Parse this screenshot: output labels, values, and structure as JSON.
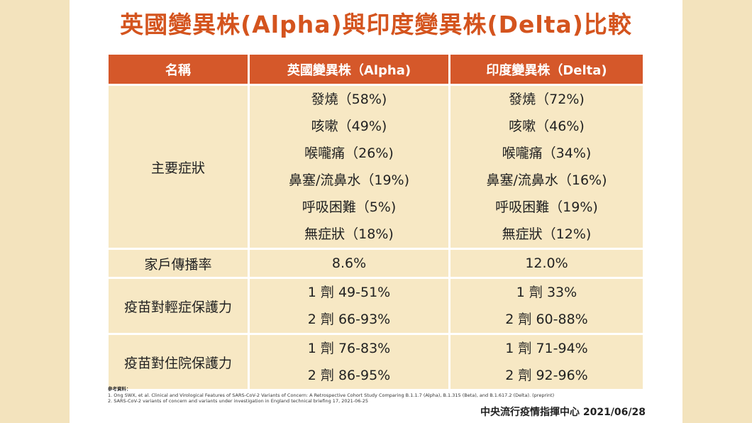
{
  "title": "英國變異株(Alpha)與印度變異株(Delta)比較",
  "table": {
    "headers": [
      "名稱",
      "英國變異株（Alpha)",
      "印度變異株（Delta)"
    ],
    "rows": [
      {
        "label": "主要症狀",
        "alpha": [
          "發燒（58%)",
          "咳嗽（49%)",
          "喉嚨痛（26%)",
          "鼻塞/流鼻水（19%)",
          "呼吸困難（5%)",
          "無症狀（18%)"
        ],
        "delta": [
          "發燒（72%)",
          "咳嗽（46%)",
          "喉嚨痛（34%)",
          "鼻塞/流鼻水（16%)",
          "呼吸困難（19%)",
          "無症狀（12%)"
        ]
      },
      {
        "label": "家戶傳播率",
        "alpha": [
          "8.6%"
        ],
        "delta": [
          "12.0%"
        ]
      },
      {
        "label": "疫苗對輕症保護力",
        "alpha": [
          "1 劑 49-51%",
          "2 劑 66-93%"
        ],
        "delta": [
          "1 劑 33%",
          "2 劑 60-88%"
        ]
      },
      {
        "label": "疫苗對住院保護力",
        "alpha": [
          "1 劑 76-83%",
          "2 劑 86-95%"
        ],
        "delta": [
          "1 劑 71-94%",
          "2 劑 92-96%"
        ]
      }
    ]
  },
  "references": {
    "heading": "參考資料：",
    "items": [
      "1. Ong SWX, et al. Clinical and Virological Features of SARS-CoV-2 Variants of Concern: A Retrospective Cohort Study Comparing B.1.1.7 (Alpha), B.1.315 (Beta), and B.1.617.2 (Delta). (preprint)",
      "2. SARS-CoV-2 variants of concern and variants under investigation in England technical briefing 17, 2021-06-25"
    ]
  },
  "source": "中央流行疫情指揮中心 2021/06/28",
  "colors": {
    "accent": "#d4541e",
    "header_bg": "#d5582a",
    "cell_bg": "#f7e8c4",
    "side_bg": "#f3e3bd"
  }
}
